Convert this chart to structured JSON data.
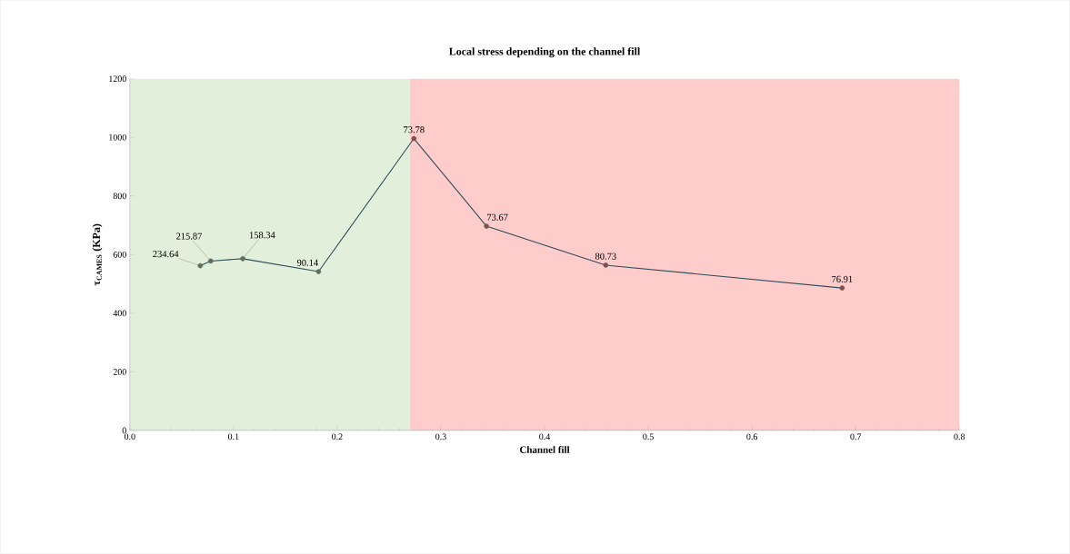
{
  "chart_data": {
    "type": "line",
    "title": "Local stress depending on the channel fill",
    "xlabel": "Channel fill",
    "ylabel": "τ$_{CAMES}$ (KPa)",
    "series": [
      {
        "x": [
          0.068,
          0.078,
          0.109,
          0.182,
          0.274,
          0.344,
          0.459,
          0.687
        ],
        "values": [
          562,
          578,
          586,
          542,
          996,
          697,
          564,
          486
        ],
        "color": "#2f4f5a",
        "colors": [
          "#5f6f5c",
          "#5f6f5c",
          "#5f6f5c",
          "#5f6f5c",
          "#7d5050",
          "#7d5050",
          "#7d5050",
          "#7d5050"
        ]
      }
    ],
    "bands": [
      {
        "axis": "x",
        "from": 0,
        "to": 0.27,
        "color": "#e2efda"
      },
      {
        "axis": "x",
        "from": 0.27,
        "to": 0.8,
        "color": "#ffcccc"
      }
    ],
    "annotations": [
      {
        "text": "234.64",
        "x": 0.068,
        "y": 562
      },
      {
        "text": "215.87",
        "x": 0.078,
        "y": 578
      },
      {
        "text": "158.34",
        "x": 0.109,
        "y": 586
      },
      {
        "text": "90.14",
        "x": 0.182,
        "y": 542
      },
      {
        "text": "73.78",
        "x": 0.274,
        "y": 996
      },
      {
        "text": "73.67",
        "x": 0.344,
        "y": 697
      },
      {
        "text": "80.73",
        "x": 0.459,
        "y": 564
      },
      {
        "text": "76.91",
        "x": 0.687,
        "y": 486
      }
    ],
    "xlim": [
      0,
      0.8
    ],
    "ylim": [
      0,
      1200
    ],
    "xticks": [
      {
        "value": 0,
        "label": "0.0"
      },
      0.1,
      0.2,
      0.3,
      0.4,
      0.5,
      0.6,
      0.7,
      0.8
    ],
    "yticks": [
      0,
      200,
      400,
      600,
      800,
      1000,
      1200
    ],
    "grid": false,
    "marker": "circle",
    "line_style": "solid"
  }
}
